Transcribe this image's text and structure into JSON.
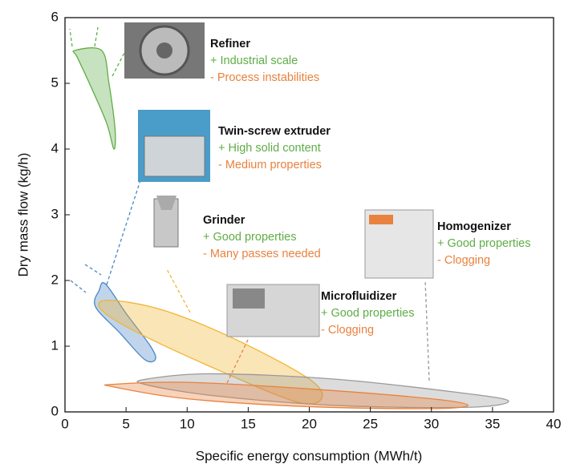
{
  "chart_data": {
    "type": "region",
    "xlabel": "Specific energy consumption (MWh/t)",
    "ylabel": "Dry mass flow (kg/h)",
    "xlim": [
      0,
      40
    ],
    "ylim": [
      0,
      6
    ],
    "xticks": [
      0,
      5,
      10,
      15,
      20,
      25,
      30,
      35,
      40
    ],
    "yticks": [
      0,
      1,
      2,
      3,
      4,
      5,
      6
    ],
    "series": [
      {
        "name": "Refiner",
        "pro": "+ Industrial scale",
        "con": "- Process instabilities",
        "color": "#5fad46",
        "x": [
          0.8,
          3.0,
          3.6,
          4.1,
          4.0,
          3.4,
          2.0,
          1.0
        ],
        "y": [
          5.5,
          5.5,
          5.0,
          4.3,
          4.0,
          4.4,
          5.0,
          5.4
        ]
      },
      {
        "name": "Twin-screw extruder",
        "pro": "+ High solid content",
        "con": "- Medium properties",
        "color": "#4a86c5",
        "x": [
          3.3,
          5.0,
          7.0,
          7.4,
          6.5,
          4.5,
          2.5,
          2.8
        ],
        "y": [
          1.95,
          1.5,
          1.0,
          0.8,
          0.8,
          1.2,
          1.6,
          1.85
        ]
      },
      {
        "name": "Grinder",
        "pro": "+ Good properties",
        "con": "- Many passes needed",
        "color": "#f2b531",
        "x": [
          3.5,
          8,
          14,
          20,
          21,
          19,
          13,
          6,
          3
        ],
        "y": [
          1.7,
          1.55,
          1.1,
          0.5,
          0.2,
          0.15,
          0.6,
          1.2,
          1.55
        ]
      },
      {
        "name": "Homogenizer",
        "pro": "+ Good properties",
        "con": "- Clogging",
        "color": "#9a9a9a",
        "x": [
          6.7,
          12,
          22,
          32,
          36.3,
          33,
          22,
          12,
          6.5
        ],
        "y": [
          0.5,
          0.58,
          0.5,
          0.3,
          0.17,
          0.07,
          0.1,
          0.25,
          0.42
        ]
      },
      {
        "name": "Microfluidizer",
        "pro": "+ Good properties",
        "con": "- Clogging",
        "color": "#e8823e",
        "x": [
          4,
          10,
          20,
          30,
          33,
          30,
          20,
          10,
          4
        ],
        "y": [
          0.42,
          0.45,
          0.35,
          0.2,
          0.1,
          0.05,
          0.08,
          0.2,
          0.38
        ]
      }
    ]
  }
}
